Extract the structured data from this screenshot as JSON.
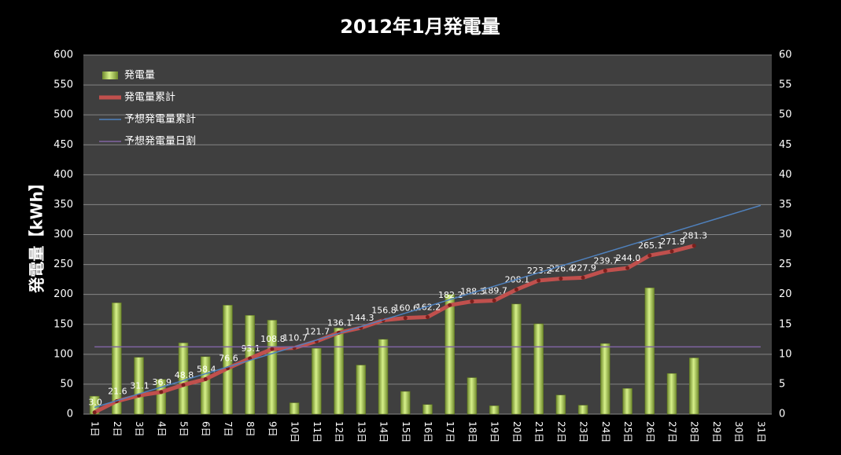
{
  "chart_data": {
    "type": "combo",
    "title": "2012年1月発電量",
    "y_label": "発電量【kWh】",
    "categories": [
      "1日",
      "2日",
      "3日",
      "4日",
      "5日",
      "6日",
      "7日",
      "8日",
      "9日",
      "10日",
      "11日",
      "12日",
      "13日",
      "14日",
      "15日",
      "16日",
      "17日",
      "18日",
      "19日",
      "20日",
      "21日",
      "22日",
      "23日",
      "24日",
      "25日",
      "26日",
      "27日",
      "28日",
      "29日",
      "30日",
      "31日"
    ],
    "ylim": [
      0,
      600
    ],
    "yticks": [
      0,
      50,
      100,
      150,
      200,
      250,
      300,
      350,
      400,
      450,
      500,
      550,
      600
    ],
    "y2lim": [
      0,
      60
    ],
    "y2ticks": [
      0,
      5,
      10,
      15,
      20,
      25,
      30,
      35,
      40,
      45,
      50,
      55,
      60
    ],
    "grid": true,
    "legend": "top-left",
    "series": [
      {
        "name": "発電量",
        "type": "bar",
        "axis": "y2",
        "color": "#9bbb59",
        "values": [
          3.0,
          18.6,
          9.5,
          5.8,
          11.9,
          9.6,
          18.2,
          16.5,
          15.7,
          1.9,
          11.0,
          14.4,
          8.2,
          12.5,
          3.8,
          1.6,
          20.0,
          6.1,
          1.4,
          18.4,
          15.1,
          3.2,
          1.5,
          11.8,
          4.3,
          21.1,
          6.8,
          9.4,
          null,
          null,
          null
        ]
      },
      {
        "name": "発電量累計",
        "type": "line",
        "color": "#c0504d",
        "markers": true,
        "values": [
          3.0,
          21.6,
          31.1,
          36.9,
          48.8,
          58.4,
          76.6,
          93.1,
          108.8,
          110.7,
          121.7,
          136.1,
          144.3,
          156.8,
          160.6,
          162.2,
          182.2,
          188.3,
          189.7,
          208.1,
          223.2,
          226.4,
          227.9,
          239.7,
          244.0,
          265.1,
          271.9,
          281.3,
          null,
          null,
          null
        ],
        "value_labels": [
          "3.0",
          "21.6",
          "31.1",
          "36.9",
          "48.8",
          "58.4",
          "76.6",
          "93.1",
          "108.8",
          "110.7",
          "121.7",
          "136.1",
          "144.3",
          "156.8",
          "160.6",
          "162.2",
          "182.2",
          "188.3",
          "189.7",
          "208.1",
          "223.2",
          "226.4",
          "227.9",
          "239.7",
          "244.0",
          "265.1",
          "271.9",
          "281.3",
          null,
          null,
          null
        ]
      },
      {
        "name": "予想発電量累計",
        "type": "line",
        "color": "#4f81bd",
        "values": [
          11.25,
          22.5,
          33.75,
          45,
          56.25,
          67.5,
          78.75,
          90,
          101.25,
          112.5,
          123.75,
          135,
          146.25,
          157.5,
          168.75,
          180,
          191.25,
          202.5,
          213.75,
          225,
          236.25,
          247.5,
          258.75,
          270,
          281.25,
          292.5,
          303.75,
          315,
          326.25,
          337.5,
          348.75
        ]
      },
      {
        "name": "予想発電量日割",
        "type": "line",
        "axis": "y2",
        "color": "#8064a2",
        "values": [
          11.25,
          11.25,
          11.25,
          11.25,
          11.25,
          11.25,
          11.25,
          11.25,
          11.25,
          11.25,
          11.25,
          11.25,
          11.25,
          11.25,
          11.25,
          11.25,
          11.25,
          11.25,
          11.25,
          11.25,
          11.25,
          11.25,
          11.25,
          11.25,
          11.25,
          11.25,
          11.25,
          11.25,
          11.25,
          11.25,
          11.25
        ]
      }
    ]
  }
}
